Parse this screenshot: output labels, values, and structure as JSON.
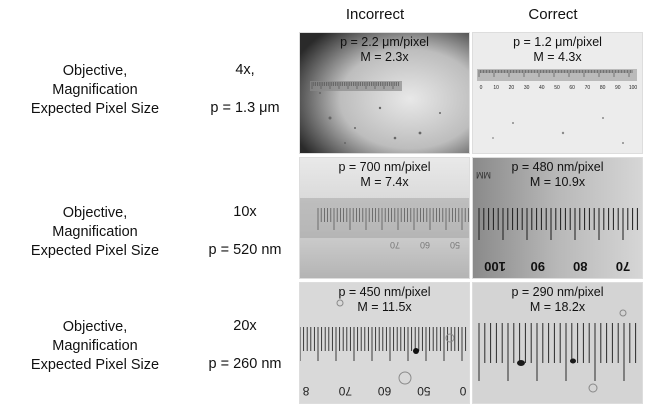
{
  "headers": {
    "incorrect": "Incorrect",
    "correct": "Correct"
  },
  "rows": [
    {
      "objective_label": "Objective,",
      "magnification_label": "Magnification",
      "pixel_label": "Expected Pixel Size",
      "objective": "4x,",
      "expected_pixel": "p = 1.3 μm",
      "incorrect": {
        "p": "p = 2.2 μm/pixel",
        "m": "M = 2.3x"
      },
      "correct": {
        "p": "p = 1.2 μm/pixel",
        "m": "M = 4.3x"
      },
      "ruler_numbers_correct": [
        "0",
        "10",
        "20",
        "30",
        "40",
        "50",
        "60",
        "70",
        "80",
        "90",
        "100"
      ]
    },
    {
      "objective_label": "Objective,",
      "magnification_label": "Magnification",
      "pixel_label": "Expected Pixel Size",
      "objective": "10x",
      "expected_pixel": "p = 520 nm",
      "incorrect": {
        "p": "p = 700 nm/pixel",
        "m": "M = 7.4x"
      },
      "correct": {
        "p": "p = 480 nm/pixel",
        "m": "M = 10.9x"
      },
      "ruler_numbers_incorrect": [
        "70",
        "60",
        "50"
      ],
      "ruler_numbers_correct": [
        "100",
        "90",
        "80",
        "70"
      ],
      "unit_mark": "MM"
    },
    {
      "objective_label": "Objective,",
      "magnification_label": "Magnification",
      "pixel_label": "Expected Pixel Size",
      "objective": "20x",
      "expected_pixel": "p = 260 nm",
      "incorrect": {
        "p": "p = 450 nm/pixel",
        "m": "M = 11.5x"
      },
      "correct": {
        "p": "p = 290 nm/pixel",
        "m": "M = 18.2x"
      },
      "ruler_numbers_incorrect": [
        "8",
        "70",
        "60",
        "50",
        "0"
      ]
    }
  ]
}
